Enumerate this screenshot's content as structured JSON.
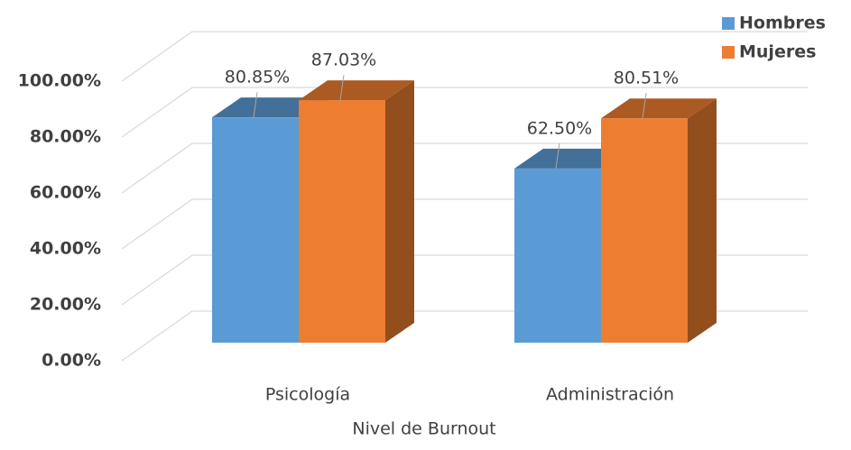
{
  "chart_data": {
    "type": "bar3d",
    "categories": [
      "Psicología",
      "Administración"
    ],
    "series": [
      {
        "name": "Hombres",
        "color": "#5b9bd5",
        "values": [
          80.85,
          62.5
        ],
        "value_labels": [
          "80.85%",
          "62.50%"
        ]
      },
      {
        "name": "Mujeres",
        "color": "#ed7d31",
        "values": [
          87.03,
          80.51
        ],
        "value_labels": [
          "87.03%",
          "80.51%"
        ]
      }
    ],
    "xlabel": "Nivel de Burnout",
    "ylim": [
      0,
      100
    ],
    "yticks": [
      {
        "value": 0,
        "label": "0.00%"
      },
      {
        "value": 20,
        "label": "20.00%"
      },
      {
        "value": 40,
        "label": "40.00%"
      },
      {
        "value": 60,
        "label": "60.00%"
      },
      {
        "value": 80,
        "label": "80.00%"
      },
      {
        "value": 100,
        "label": "100.00%"
      }
    ],
    "grid": true,
    "legend": "top-right"
  }
}
